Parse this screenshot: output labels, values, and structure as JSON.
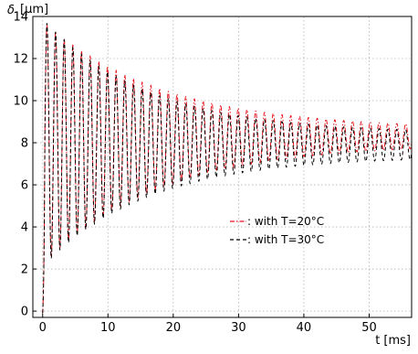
{
  "chart_data": {
    "type": "line",
    "title": "",
    "xlabel": "t [ms]",
    "ylabel_symbol": "δ",
    "ylabel_unit": "[μm]",
    "xlim": [
      -1.5,
      56.5
    ],
    "ylim": [
      -0.3,
      14
    ],
    "xticks": [
      0,
      10,
      20,
      30,
      40,
      50
    ],
    "yticks": [
      0,
      2,
      4,
      6,
      8,
      10,
      12,
      14
    ],
    "grid": true,
    "legend_position": "center-right",
    "series": [
      {
        "name": ": with T=20°C",
        "color": "#e8141c",
        "style": "dash-dot",
        "model": {
          "t0": 0,
          "start_value": -0.1,
          "mean": [
            8.0,
            8.2,
            8.3
          ],
          "amplitude": [
            5.8,
            1.0,
            0.35
          ],
          "amplitude_time_constant_ms": 18,
          "period_ms": [
            1.32,
            1.36
          ],
          "mean_time_constant_ms": 15
        }
      },
      {
        "name": ": with T=30°C",
        "color": "#000000",
        "style": "dashed",
        "model": {
          "t0": 0,
          "start_value": -0.1,
          "mean": [
            8.0,
            7.9,
            7.9
          ],
          "amplitude": [
            5.9,
            1.3,
            0.55
          ],
          "amplitude_time_constant_ms": 16,
          "period_ms": [
            1.32,
            1.36
          ],
          "mean_time_constant_ms": 15
        }
      }
    ]
  }
}
